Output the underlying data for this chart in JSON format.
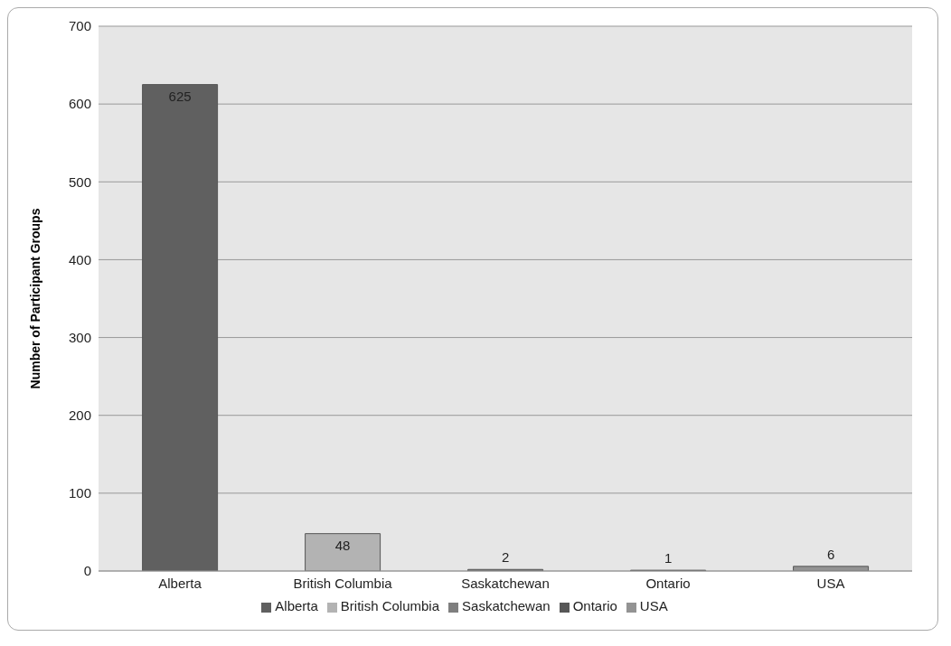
{
  "chart_data": {
    "type": "bar",
    "ylabel": "Number of Participant Groups",
    "categories": [
      "Alberta",
      "British Columbia",
      "Saskatchewan",
      "Ontario",
      "USA"
    ],
    "series": [
      {
        "name": "Alberta",
        "color": "#606060",
        "values": [
          625,
          null,
          null,
          null,
          null
        ]
      },
      {
        "name": "British Columbia",
        "color": "#b3b3b3",
        "values": [
          null,
          48,
          null,
          null,
          null
        ]
      },
      {
        "name": "Saskatchewan",
        "color": "#7f7f7f",
        "values": [
          null,
          null,
          2,
          null,
          null
        ]
      },
      {
        "name": "Ontario",
        "color": "#575757",
        "values": [
          null,
          null,
          null,
          1,
          null
        ]
      },
      {
        "name": "USA",
        "color": "#939393",
        "values": [
          null,
          null,
          null,
          null,
          6
        ]
      }
    ],
    "stacked": true,
    "ylim": [
      0,
      700
    ],
    "yticks": [
      0,
      100,
      200,
      300,
      400,
      500,
      600,
      700
    ],
    "grid": "y",
    "legend": "bottom",
    "data_labels": true
  }
}
